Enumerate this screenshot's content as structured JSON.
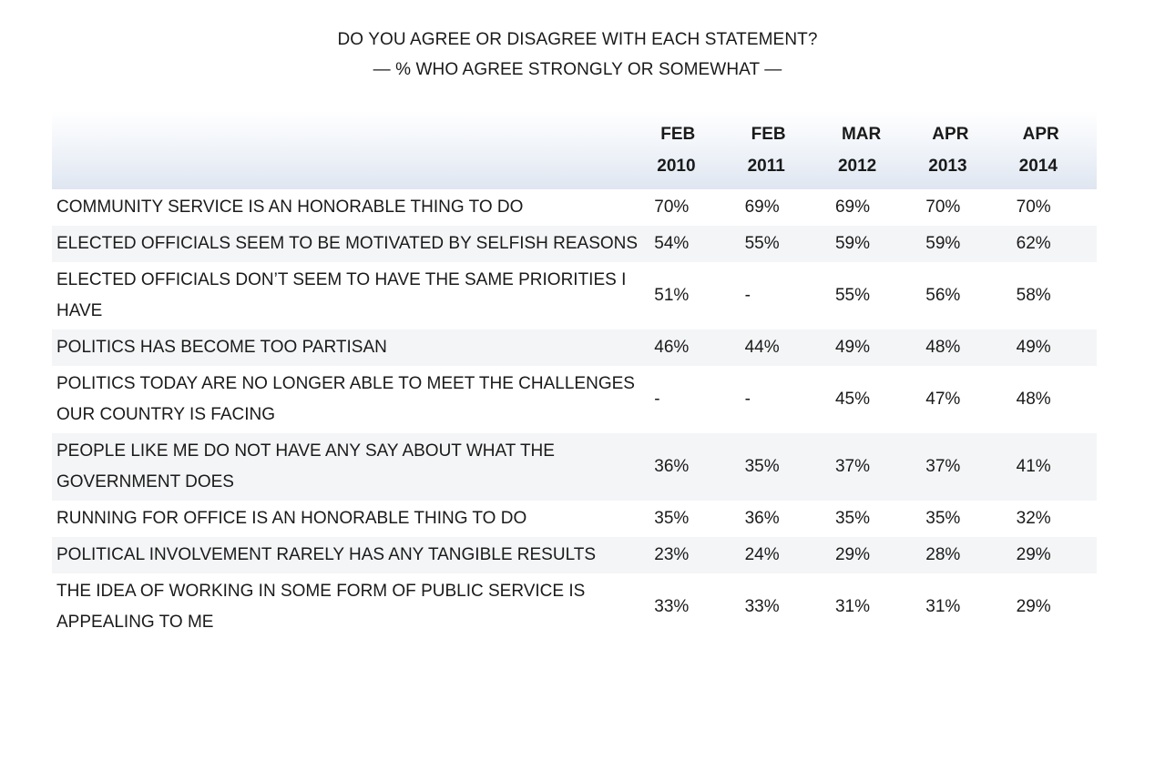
{
  "chart_data": {
    "type": "table",
    "title": "DO YOU AGREE OR DISAGREE WITH EACH STATEMENT?",
    "subtitle": "— % WHO AGREE STRONGLY OR SOMEWHAT —",
    "columns": [
      {
        "month": "FEB",
        "year": "2010"
      },
      {
        "month": "FEB",
        "year": "2011"
      },
      {
        "month": "MAR",
        "year": "2012"
      },
      {
        "month": "APR",
        "year": "2013"
      },
      {
        "month": "APR",
        "year": "2014"
      }
    ],
    "rows": [
      {
        "statement": "COMMUNITY SERVICE IS AN HONORABLE THING TO DO",
        "values": [
          "70%",
          "69%",
          "69%",
          "70%",
          "70%"
        ]
      },
      {
        "statement": "ELECTED OFFICIALS SEEM TO BE MOTIVATED BY SELFISH REASONS",
        "values": [
          "54%",
          "55%",
          "59%",
          "59%",
          "62%"
        ]
      },
      {
        "statement": "ELECTED OFFICIALS DON’T SEEM TO HAVE THE SAME PRIORITIES I HAVE",
        "values": [
          "51%",
          "-",
          "55%",
          "56%",
          "58%"
        ]
      },
      {
        "statement": "POLITICS HAS BECOME TOO PARTISAN",
        "values": [
          "46%",
          "44%",
          "49%",
          "48%",
          "49%"
        ]
      },
      {
        "statement": "POLITICS TODAY ARE NO LONGER ABLE TO MEET THE CHALLENGES OUR COUNTRY IS FACING",
        "values": [
          "-",
          "-",
          "45%",
          "47%",
          "48%"
        ]
      },
      {
        "statement": "PEOPLE LIKE ME DO NOT HAVE ANY SAY ABOUT WHAT THE GOVERNMENT DOES",
        "values": [
          "36%",
          "35%",
          "37%",
          "37%",
          "41%"
        ]
      },
      {
        "statement": "RUNNING FOR OFFICE IS AN HONORABLE THING TO DO",
        "values": [
          "35%",
          "36%",
          "35%",
          "35%",
          "32%"
        ]
      },
      {
        "statement": "POLITICAL INVOLVEMENT RARELY HAS ANY TANGIBLE RESULTS",
        "values": [
          "23%",
          "24%",
          "29%",
          "28%",
          "29%"
        ]
      },
      {
        "statement": "THE IDEA OF WORKING IN SOME FORM OF PUBLIC SERVICE IS APPEALING TO ME",
        "values": [
          "33%",
          "33%",
          "31%",
          "31%",
          "29%"
        ]
      }
    ]
  }
}
